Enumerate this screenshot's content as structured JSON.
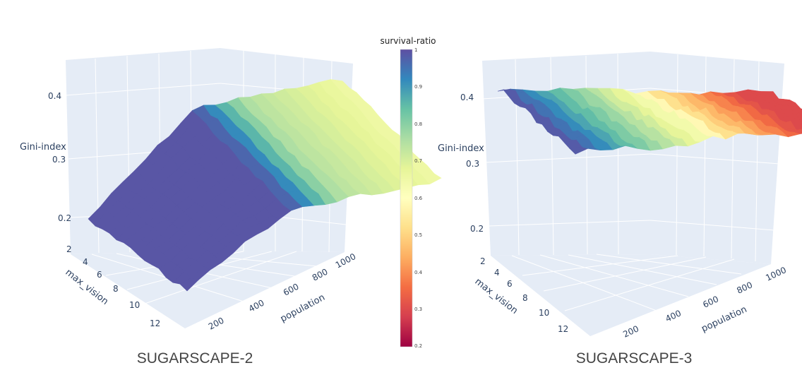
{
  "chart_data": [
    {
      "type": "surface",
      "title": "SUGARSCAPE-2",
      "x_axis": {
        "label": "population",
        "ticks": [
          200,
          400,
          600,
          800,
          1000
        ]
      },
      "y_axis": {
        "label": "max_vision",
        "ticks": [
          2,
          4,
          6,
          8,
          10,
          12
        ]
      },
      "z_axis": {
        "label": "Gini-index",
        "ticks": [
          0.2,
          0.3,
          0.4
        ]
      },
      "surface_color": "survival-ratio",
      "surface_shape": "high survival-ratio plateau for low population; survival-ratio declines toward 0.65-0.75 as population rises toward 1000; Gini-index ≈ 0.19–0.33"
    },
    {
      "type": "surface",
      "title": "SUGARSCAPE-3",
      "x_axis": {
        "label": "population",
        "ticks": [
          200,
          400,
          600,
          800,
          1000
        ]
      },
      "y_axis": {
        "label": "max_vision",
        "ticks": [
          2,
          4,
          6,
          8,
          10,
          12
        ]
      },
      "z_axis": {
        "label": "Gini-index",
        "ticks": [
          0.2,
          0.3,
          0.4
        ]
      },
      "surface_color": "survival-ratio",
      "surface_shape": "survival-ratio falls from ≈1 at low population to ≈0.3 at population 1000; Gini-index ≈ 0.36–0.42"
    }
  ],
  "colorbar": {
    "title": "survival-ratio",
    "range": [
      0.2,
      1
    ],
    "ticks": [
      "1",
      "0.9",
      "0.8",
      "0.7",
      "0.6",
      "0.5",
      "0.4",
      "0.3",
      "0.2"
    ],
    "colors": [
      "#5e4fa2",
      "#3288bd",
      "#66c2a5",
      "#abdda4",
      "#e6f598",
      "#ffffbf",
      "#fee08b",
      "#fdae61",
      "#f46d43",
      "#d53e4f",
      "#9e0142"
    ]
  }
}
